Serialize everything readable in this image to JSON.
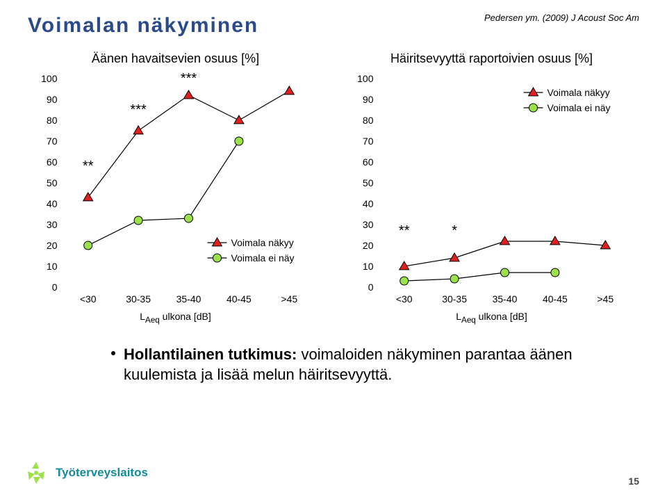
{
  "citation": "Pedersen ym. (2009) J Acoust Soc Am",
  "title": "Voimalan näkyminen",
  "charts": {
    "left": {
      "title": "Äänen havaitsevien osuus [%]",
      "x_categories": [
        "<30",
        "30-35",
        "35-40",
        "40-45",
        ">45"
      ],
      "ylim": [
        0,
        100
      ],
      "ytick_step": 10,
      "background_color": "#ffffff",
      "legend": {
        "position": "inside-bottom-right"
      },
      "series": [
        {
          "name": "Voimala näkyy",
          "marker": "triangle",
          "color": "#e21e1e",
          "line_color": "#000000",
          "values": [
            43,
            75,
            92,
            80,
            94
          ]
        },
        {
          "name": "Voimala ei näy",
          "marker": "circle",
          "color": "#9be24a",
          "line_color": "#000000",
          "values": [
            20,
            32,
            33,
            70,
            null
          ]
        }
      ],
      "sig_labels": [
        {
          "text": "**",
          "x_index": 0,
          "y": 56
        },
        {
          "text": "***",
          "x_index": 1,
          "y": 83
        },
        {
          "text": "***",
          "x_index": 2,
          "y": 98
        }
      ],
      "x_label_html": "L<sub>Aeq</sub> ulkona [dB]"
    },
    "right": {
      "title": "Häiritsevyyttä raportoivien osuus [%]",
      "x_categories": [
        "<30",
        "30-35",
        "35-40",
        "40-45",
        ">45"
      ],
      "ylim": [
        0,
        100
      ],
      "ytick_step": 10,
      "background_color": "#ffffff",
      "legend": {
        "position": "inside-top-right"
      },
      "series": [
        {
          "name": "Voimala näkyy",
          "marker": "triangle",
          "color": "#e21e1e",
          "line_color": "#000000",
          "values": [
            10,
            14,
            22,
            22,
            20
          ]
        },
        {
          "name": "Voimala ei näy",
          "marker": "circle",
          "color": "#9be24a",
          "line_color": "#000000",
          "values": [
            3,
            4,
            7,
            7,
            null
          ]
        }
      ],
      "sig_labels": [
        {
          "text": "**",
          "x_index": 0,
          "y": 25
        },
        {
          "text": "*",
          "x_index": 1,
          "y": 25
        }
      ],
      "x_label_html": "L<sub>Aeq</sub> ulkona [dB]"
    }
  },
  "bullet": {
    "bold": "Hollantilainen tutkimus:",
    "rest": " voimaloiden näkyminen parantaa äänen kuulemista ja lisää melun häiritsevyyttä."
  },
  "logo_text": "Työterveyslaitos",
  "page_number": "15",
  "colors": {
    "title": "#2a4a8a",
    "red": "#e21e1e",
    "green": "#9be24a",
    "logo": "#148a9c"
  }
}
